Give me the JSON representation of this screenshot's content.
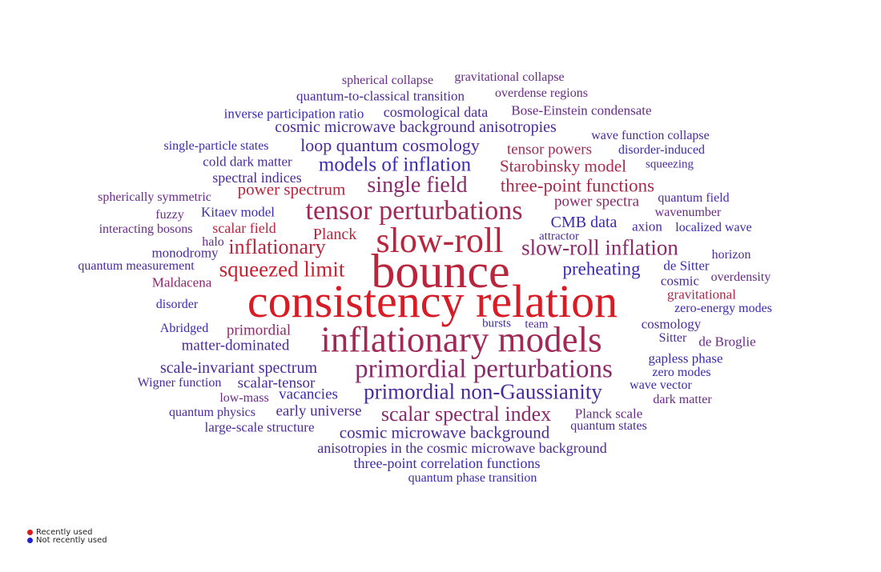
{
  "legend": {
    "recent_label": "Recently used",
    "recent_color": "#d81b1b",
    "not_recent_label": "Not recently used",
    "not_recent_color": "#2222cc"
  },
  "words": [
    {
      "text": "spherical collapse",
      "color": "#6a2a8a"
    },
    {
      "text": "gravitational collapse",
      "color": "#6a2a8a"
    },
    {
      "text": "quantum-to-classical transition",
      "color": "#4a2a9a"
    },
    {
      "text": "overdense regions",
      "color": "#6a2a8a"
    },
    {
      "text": "inverse participation ratio",
      "color": "#3a2ab0"
    },
    {
      "text": "cosmological data",
      "color": "#4a2a9a"
    },
    {
      "text": "Bose-Einstein condensate",
      "color": "#6a2a8a"
    },
    {
      "text": "cosmic microwave background anisotropies",
      "color": "#4a2a9a"
    },
    {
      "text": "wave function collapse",
      "color": "#4a2a9a"
    },
    {
      "text": "single-particle states",
      "color": "#3a2ab0"
    },
    {
      "text": "loop quantum cosmology",
      "color": "#4a2aa0"
    },
    {
      "text": "tensor powers",
      "color": "#a02a55"
    },
    {
      "text": "disorder-induced",
      "color": "#3a2ab0"
    },
    {
      "text": "cold dark matter",
      "color": "#4a2a9a"
    },
    {
      "text": "models of inflation",
      "color": "#3a2ab0"
    },
    {
      "text": "Starobinsky model",
      "color": "#a82a4a"
    },
    {
      "text": "squeezing",
      "color": "#4a2a9a"
    },
    {
      "text": "spectral indices",
      "color": "#4a2a9a"
    },
    {
      "text": "power spectrum",
      "color": "#b8263d"
    },
    {
      "text": "single field",
      "color": "#8a2a6a"
    },
    {
      "text": "three-point functions",
      "color": "#a82a4a"
    },
    {
      "text": "spherically symmetric",
      "color": "#6a2a8a"
    },
    {
      "text": "power spectra",
      "color": "#8a2a6a"
    },
    {
      "text": "quantum field",
      "color": "#4a2aa0"
    },
    {
      "text": "fuzzy",
      "color": "#6a2a8a"
    },
    {
      "text": "Kitaev model",
      "color": "#3a2ab0"
    },
    {
      "text": "tensor perturbations",
      "color": "#a02a55"
    },
    {
      "text": "wavenumber",
      "color": "#6a2a8a"
    },
    {
      "text": "interacting bosons",
      "color": "#6a2a8a"
    },
    {
      "text": "scalar field",
      "color": "#b8263d"
    },
    {
      "text": "Planck",
      "color": "#b8263d"
    },
    {
      "text": "slow-roll",
      "color": "#b8263d"
    },
    {
      "text": "CMB data",
      "color": "#3a2ab0"
    },
    {
      "text": "axion",
      "color": "#4a2a9a"
    },
    {
      "text": "localized wave",
      "color": "#3a2ab0"
    },
    {
      "text": "halo",
      "color": "#6a2a8a"
    },
    {
      "text": "attractor",
      "color": "#4a2a9a"
    },
    {
      "text": "inflationary",
      "color": "#b8263d"
    },
    {
      "text": "slow-roll inflation",
      "color": "#8a2a6a"
    },
    {
      "text": "monodromy",
      "color": "#4a2a9a"
    },
    {
      "text": "horizon",
      "color": "#4a2a9a"
    },
    {
      "text": "quantum measurement",
      "color": "#4a2a9a"
    },
    {
      "text": "squeezed limit",
      "color": "#c8202f"
    },
    {
      "text": "bounce",
      "color": "#b8263d"
    },
    {
      "text": "preheating",
      "color": "#3a2ab0"
    },
    {
      "text": "de Sitter",
      "color": "#3a2ab0"
    },
    {
      "text": "Maldacena",
      "color": "#8a2a6a"
    },
    {
      "text": "cosmic",
      "color": "#4a2a9a"
    },
    {
      "text": "overdensity",
      "color": "#6a2a8a"
    },
    {
      "text": "gravitational",
      "color": "#a82a4a"
    },
    {
      "text": "consistency relation",
      "color": "#d81b24"
    },
    {
      "text": "disorder",
      "color": "#3a2ab0"
    },
    {
      "text": "zero-energy modes",
      "color": "#3a2ab0"
    },
    {
      "text": "bursts",
      "color": "#3a2ab0"
    },
    {
      "text": "team",
      "color": "#4a2a9a"
    },
    {
      "text": "cosmology",
      "color": "#4a2a9a"
    },
    {
      "text": "Abridged",
      "color": "#3a2ab0"
    },
    {
      "text": "primordial",
      "color": "#8a2a6a"
    },
    {
      "text": "inflationary models",
      "color": "#a02a55"
    },
    {
      "text": "Sitter",
      "color": "#4a2a9a"
    },
    {
      "text": "de Broglie",
      "color": "#6a2a8a"
    },
    {
      "text": "matter-dominated",
      "color": "#4a2a9a"
    },
    {
      "text": "gapless phase",
      "color": "#3a2ab0"
    },
    {
      "text": "scale-invariant spectrum",
      "color": "#4a2a9a"
    },
    {
      "text": "primordial perturbations",
      "color": "#8a2a6a"
    },
    {
      "text": "zero modes",
      "color": "#3a2ab0"
    },
    {
      "text": "Wigner function",
      "color": "#4a2a9a"
    },
    {
      "text": "scalar-tensor",
      "color": "#4a2a9a"
    },
    {
      "text": "wave vector",
      "color": "#3a2ab0"
    },
    {
      "text": "low-mass",
      "color": "#6a2a8a"
    },
    {
      "text": "vacancies",
      "color": "#3a2ab0"
    },
    {
      "text": "primordial non-Gaussianity",
      "color": "#4a2a9a"
    },
    {
      "text": "dark matter",
      "color": "#6a2a8a"
    },
    {
      "text": "quantum physics",
      "color": "#4a2a9a"
    },
    {
      "text": "early universe",
      "color": "#4a2a9a"
    },
    {
      "text": "scalar spectral index",
      "color": "#8a2a6a"
    },
    {
      "text": "Planck scale",
      "color": "#6a2a8a"
    },
    {
      "text": "large-scale structure",
      "color": "#4a2a9a"
    },
    {
      "text": "quantum states",
      "color": "#4a2a9a"
    },
    {
      "text": "cosmic microwave background",
      "color": "#4a2a9a"
    },
    {
      "text": "anisotropies in the cosmic microwave background",
      "color": "#4a2a9a"
    },
    {
      "text": "three-point correlation functions",
      "color": "#3a2ab0"
    },
    {
      "text": "quantum phase transition",
      "color": "#3a2ab0"
    }
  ]
}
